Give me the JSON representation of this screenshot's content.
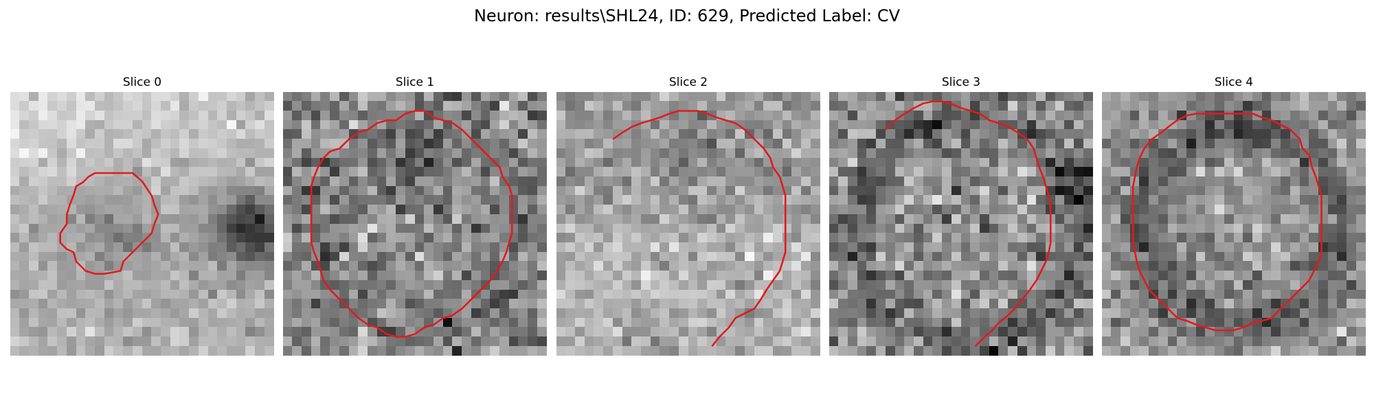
{
  "figure": {
    "title": "Neuron: results\\SHL24, ID: 629, Predicted Label: CV",
    "colormap": "gray",
    "contour_color": "#e41a1c"
  },
  "panels": [
    {
      "title": "Slice 0",
      "contour": [
        [
          13,
          8.6
        ],
        [
          14,
          9.5
        ],
        [
          15,
          11
        ],
        [
          15.3,
          12
        ],
        [
          15.7,
          13
        ],
        [
          15.3,
          14
        ],
        [
          15,
          15
        ],
        [
          14,
          16
        ],
        [
          13,
          17
        ],
        [
          12,
          18
        ],
        [
          11.7,
          19
        ],
        [
          10,
          19.3
        ],
        [
          9,
          19.3
        ],
        [
          8,
          19
        ],
        [
          7,
          18
        ],
        [
          6.7,
          17
        ],
        [
          6,
          16.7
        ],
        [
          5.3,
          16
        ],
        [
          5.3,
          15
        ],
        [
          6,
          14
        ],
        [
          6,
          13
        ],
        [
          6.3,
          12
        ],
        [
          6.7,
          11
        ],
        [
          7,
          10
        ],
        [
          7.7,
          9.6
        ],
        [
          8.3,
          9
        ],
        [
          9,
          8.6
        ]
      ]
    },
    {
      "title": "Slice 1",
      "contour": [
        [
          6,
          6
        ],
        [
          7,
          5
        ],
        [
          8,
          4.3
        ],
        [
          9,
          4
        ],
        [
          10,
          3.3
        ],
        [
          11,
          3
        ],
        [
          12,
          3
        ],
        [
          13,
          2.3
        ],
        [
          14,
          2
        ],
        [
          15,
          2
        ],
        [
          16,
          2.7
        ],
        [
          17,
          3
        ],
        [
          18,
          3.3
        ],
        [
          19,
          4
        ],
        [
          20,
          5
        ],
        [
          21,
          6
        ],
        [
          22,
          7
        ],
        [
          23,
          8
        ],
        [
          23.3,
          9
        ],
        [
          24,
          10
        ],
        [
          24.3,
          11
        ],
        [
          24.3,
          12
        ],
        [
          24.3,
          13
        ],
        [
          24.3,
          14
        ],
        [
          24.3,
          15
        ],
        [
          24,
          16
        ],
        [
          23.7,
          17
        ],
        [
          23.3,
          18
        ],
        [
          22.7,
          19
        ],
        [
          22,
          20
        ],
        [
          21,
          21
        ],
        [
          20,
          22
        ],
        [
          19,
          23
        ],
        [
          18,
          23.7
        ],
        [
          17,
          24
        ],
        [
          16,
          24.7
        ],
        [
          15,
          25
        ],
        [
          14,
          25.7
        ],
        [
          13,
          26
        ],
        [
          12,
          26
        ],
        [
          11,
          25.7
        ],
        [
          10,
          25
        ],
        [
          9,
          24.7
        ],
        [
          8,
          24
        ],
        [
          7,
          23
        ],
        [
          6,
          22
        ],
        [
          5,
          21
        ],
        [
          4.3,
          20
        ],
        [
          4,
          19
        ],
        [
          3.7,
          18
        ],
        [
          3.3,
          17
        ],
        [
          3,
          16
        ],
        [
          3,
          15
        ],
        [
          3,
          14
        ],
        [
          3,
          13
        ],
        [
          3,
          12
        ],
        [
          3,
          11
        ],
        [
          3,
          10
        ],
        [
          3.3,
          9
        ],
        [
          3.7,
          8
        ],
        [
          4.3,
          7
        ],
        [
          5,
          6.3
        ]
      ]
    },
    {
      "title": "Slice 2",
      "contour": [
        [
          6,
          5
        ],
        [
          7,
          4.3
        ],
        [
          8,
          3.7
        ],
        [
          9,
          3.3
        ],
        [
          10,
          3
        ],
        [
          11,
          2.7
        ],
        [
          12,
          2.3
        ],
        [
          13,
          2
        ],
        [
          14,
          2
        ],
        [
          15,
          2
        ],
        [
          16,
          2.3
        ],
        [
          17,
          2.7
        ],
        [
          18,
          3
        ],
        [
          19,
          3.3
        ],
        [
          20,
          4
        ],
        [
          21,
          5
        ],
        [
          22,
          6
        ],
        [
          22.7,
          7
        ],
        [
          23,
          8
        ],
        [
          23.7,
          9
        ],
        [
          24,
          10
        ],
        [
          24.3,
          11
        ],
        [
          24.3,
          12
        ],
        [
          24.3,
          13
        ],
        [
          24.3,
          14
        ],
        [
          24.3,
          15
        ],
        [
          24.3,
          16
        ],
        [
          24.3,
          17
        ],
        [
          24,
          18
        ],
        [
          23.7,
          19
        ],
        [
          23,
          20
        ],
        [
          22.3,
          21
        ],
        [
          21.7,
          22
        ],
        [
          21,
          23
        ],
        [
          20,
          23.5
        ],
        [
          19,
          24
        ],
        [
          18.3,
          25
        ],
        [
          17.3,
          26
        ],
        [
          16.5,
          27
        ]
      ]
    },
    {
      "title": "Slice 3",
      "contour": [
        [
          6,
          4
        ],
        [
          7,
          3
        ],
        [
          8,
          2.3
        ],
        [
          9,
          1.7
        ],
        [
          10,
          1.2
        ],
        [
          11,
          1
        ],
        [
          12,
          1
        ],
        [
          13,
          1.3
        ],
        [
          14,
          1.7
        ],
        [
          15,
          2
        ],
        [
          16,
          2.3
        ],
        [
          17,
          3
        ],
        [
          18,
          3.3
        ],
        [
          19,
          3.7
        ],
        [
          20,
          4.3
        ],
        [
          21,
          5
        ],
        [
          21.7,
          6
        ],
        [
          22,
          7
        ],
        [
          22.3,
          8
        ],
        [
          22.7,
          9
        ],
        [
          23,
          10
        ],
        [
          23.3,
          11
        ],
        [
          23.5,
          12
        ],
        [
          23.5,
          13
        ],
        [
          23.5,
          14
        ],
        [
          23.5,
          15
        ],
        [
          23.5,
          16
        ],
        [
          23.3,
          17
        ],
        [
          23,
          18
        ],
        [
          22.5,
          19
        ],
        [
          22,
          20
        ],
        [
          21.3,
          21
        ],
        [
          20.5,
          22
        ],
        [
          19.7,
          23
        ],
        [
          19,
          23.7
        ],
        [
          18,
          24.5
        ],
        [
          17.3,
          25.3
        ],
        [
          16.5,
          26
        ],
        [
          15.5,
          27
        ]
      ]
    },
    {
      "title": "Slice 4",
      "contour": [
        [
          8,
          3
        ],
        [
          9,
          2.5
        ],
        [
          10,
          2.3
        ],
        [
          11,
          2.3
        ],
        [
          12,
          2.3
        ],
        [
          13,
          2.3
        ],
        [
          14,
          2.3
        ],
        [
          15,
          2.3
        ],
        [
          16,
          2.3
        ],
        [
          17,
          2.7
        ],
        [
          18,
          3
        ],
        [
          19,
          3.5
        ],
        [
          20,
          4
        ],
        [
          21,
          5
        ],
        [
          21.3,
          6
        ],
        [
          22,
          6.7
        ],
        [
          22.3,
          8
        ],
        [
          22.7,
          9
        ],
        [
          23,
          10
        ],
        [
          23.3,
          11
        ],
        [
          23.3,
          12
        ],
        [
          23.3,
          13
        ],
        [
          23.3,
          14
        ],
        [
          23.3,
          15
        ],
        [
          23.3,
          16
        ],
        [
          23.3,
          17
        ],
        [
          23,
          18
        ],
        [
          22.5,
          19
        ],
        [
          22,
          20
        ],
        [
          21,
          21
        ],
        [
          20,
          22
        ],
        [
          19,
          23
        ],
        [
          18,
          24
        ],
        [
          17,
          24.3
        ],
        [
          16,
          24.5
        ],
        [
          15,
          25
        ],
        [
          14,
          25.3
        ],
        [
          13,
          25.3
        ],
        [
          12,
          25.3
        ],
        [
          11,
          25
        ],
        [
          10,
          24.7
        ],
        [
          9,
          24.3
        ],
        [
          8,
          24
        ],
        [
          7,
          23
        ],
        [
          6,
          22
        ],
        [
          5,
          21
        ],
        [
          4.5,
          20
        ],
        [
          4,
          19
        ],
        [
          3.7,
          18
        ],
        [
          3.5,
          17
        ],
        [
          3.3,
          16
        ],
        [
          3.3,
          15
        ],
        [
          3.3,
          14
        ],
        [
          3.3,
          13
        ],
        [
          3.3,
          12
        ],
        [
          3.3,
          11
        ],
        [
          3.3,
          10
        ],
        [
          3.5,
          9
        ],
        [
          3.7,
          8
        ],
        [
          4,
          7
        ],
        [
          4.5,
          6
        ],
        [
          5.3,
          5
        ],
        [
          6.3,
          4.3
        ],
        [
          7.3,
          3.5
        ]
      ]
    }
  ]
}
